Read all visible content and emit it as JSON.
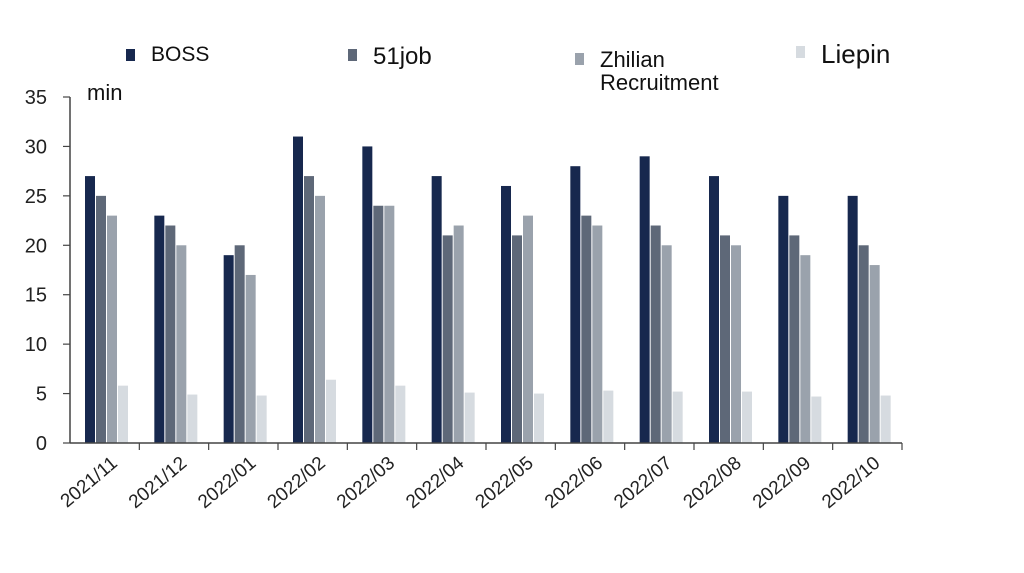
{
  "chart_data": {
    "type": "bar",
    "unit_label": "min",
    "categories": [
      "2021/11",
      "2021/12",
      "2022/01",
      "2022/02",
      "2022/03",
      "2022/04",
      "2022/05",
      "2022/06",
      "2022/07",
      "2022/08",
      "2022/09",
      "2022/10"
    ],
    "series": [
      {
        "name": "BOSS",
        "color": "#17284e",
        "values": [
          27,
          23,
          19,
          31,
          30,
          27,
          26,
          28,
          29,
          27,
          25,
          25
        ]
      },
      {
        "name": "51job",
        "color": "#5e6878",
        "values": [
          25,
          22,
          20,
          27,
          24,
          21,
          21,
          23,
          22,
          21,
          21,
          20
        ]
      },
      {
        "name": "Zhilian Recruitment",
        "color": "#9aa2ac",
        "values": [
          23,
          20,
          17,
          25,
          24,
          22,
          23,
          22,
          20,
          20,
          19,
          18
        ]
      },
      {
        "name": "Liepin",
        "color": "#d6dbe0",
        "values": [
          5.8,
          4.9,
          4.8,
          6.4,
          5.8,
          5.1,
          5.0,
          5.3,
          5.2,
          5.2,
          4.7,
          4.8
        ]
      }
    ],
    "ylim": [
      0,
      35
    ],
    "yticks": [
      0,
      5,
      10,
      15,
      20,
      25,
      30,
      35
    ],
    "grid": false,
    "legend_position": "top"
  }
}
